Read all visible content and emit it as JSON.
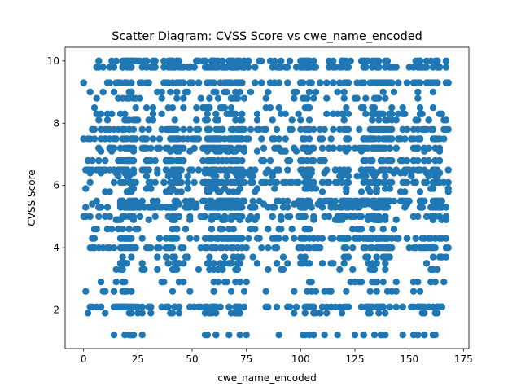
{
  "chart_data": {
    "type": "scatter",
    "title": "Scatter Diagram: CVSS Score vs cwe_name_encoded",
    "xlabel": "cwe_name_encoded",
    "ylabel": "CVSS Score",
    "xlim": [
      -8.5,
      177.5
    ],
    "ylim": [
      0.76,
      10.44
    ],
    "xticks": [
      0,
      25,
      50,
      75,
      100,
      125,
      150,
      175
    ],
    "yticks": [
      2,
      4,
      6,
      8,
      10
    ],
    "marker_color": "#1f77b4",
    "grid": false,
    "legend": "none",
    "x_domain": [
      0,
      168
    ],
    "y_levels": [
      1.2,
      1.9,
      2.1,
      2.6,
      2.9,
      3.3,
      3.5,
      3.7,
      4.0,
      4.3,
      4.6,
      4.9,
      5.0,
      5.3,
      5.4,
      5.5,
      5.8,
      5.9,
      6.1,
      6.3,
      6.4,
      6.5,
      6.8,
      7.1,
      7.2,
      7.5,
      7.8,
      8.1,
      8.3,
      8.5,
      8.8,
      9.0,
      9.3,
      9.8,
      10.0
    ],
    "dense_columns": [
      18,
      20,
      22,
      40,
      43,
      57,
      60,
      63,
      67,
      70,
      72,
      102,
      104,
      120,
      130,
      134,
      137,
      140,
      155,
      162
    ],
    "point_count": 2600
  }
}
